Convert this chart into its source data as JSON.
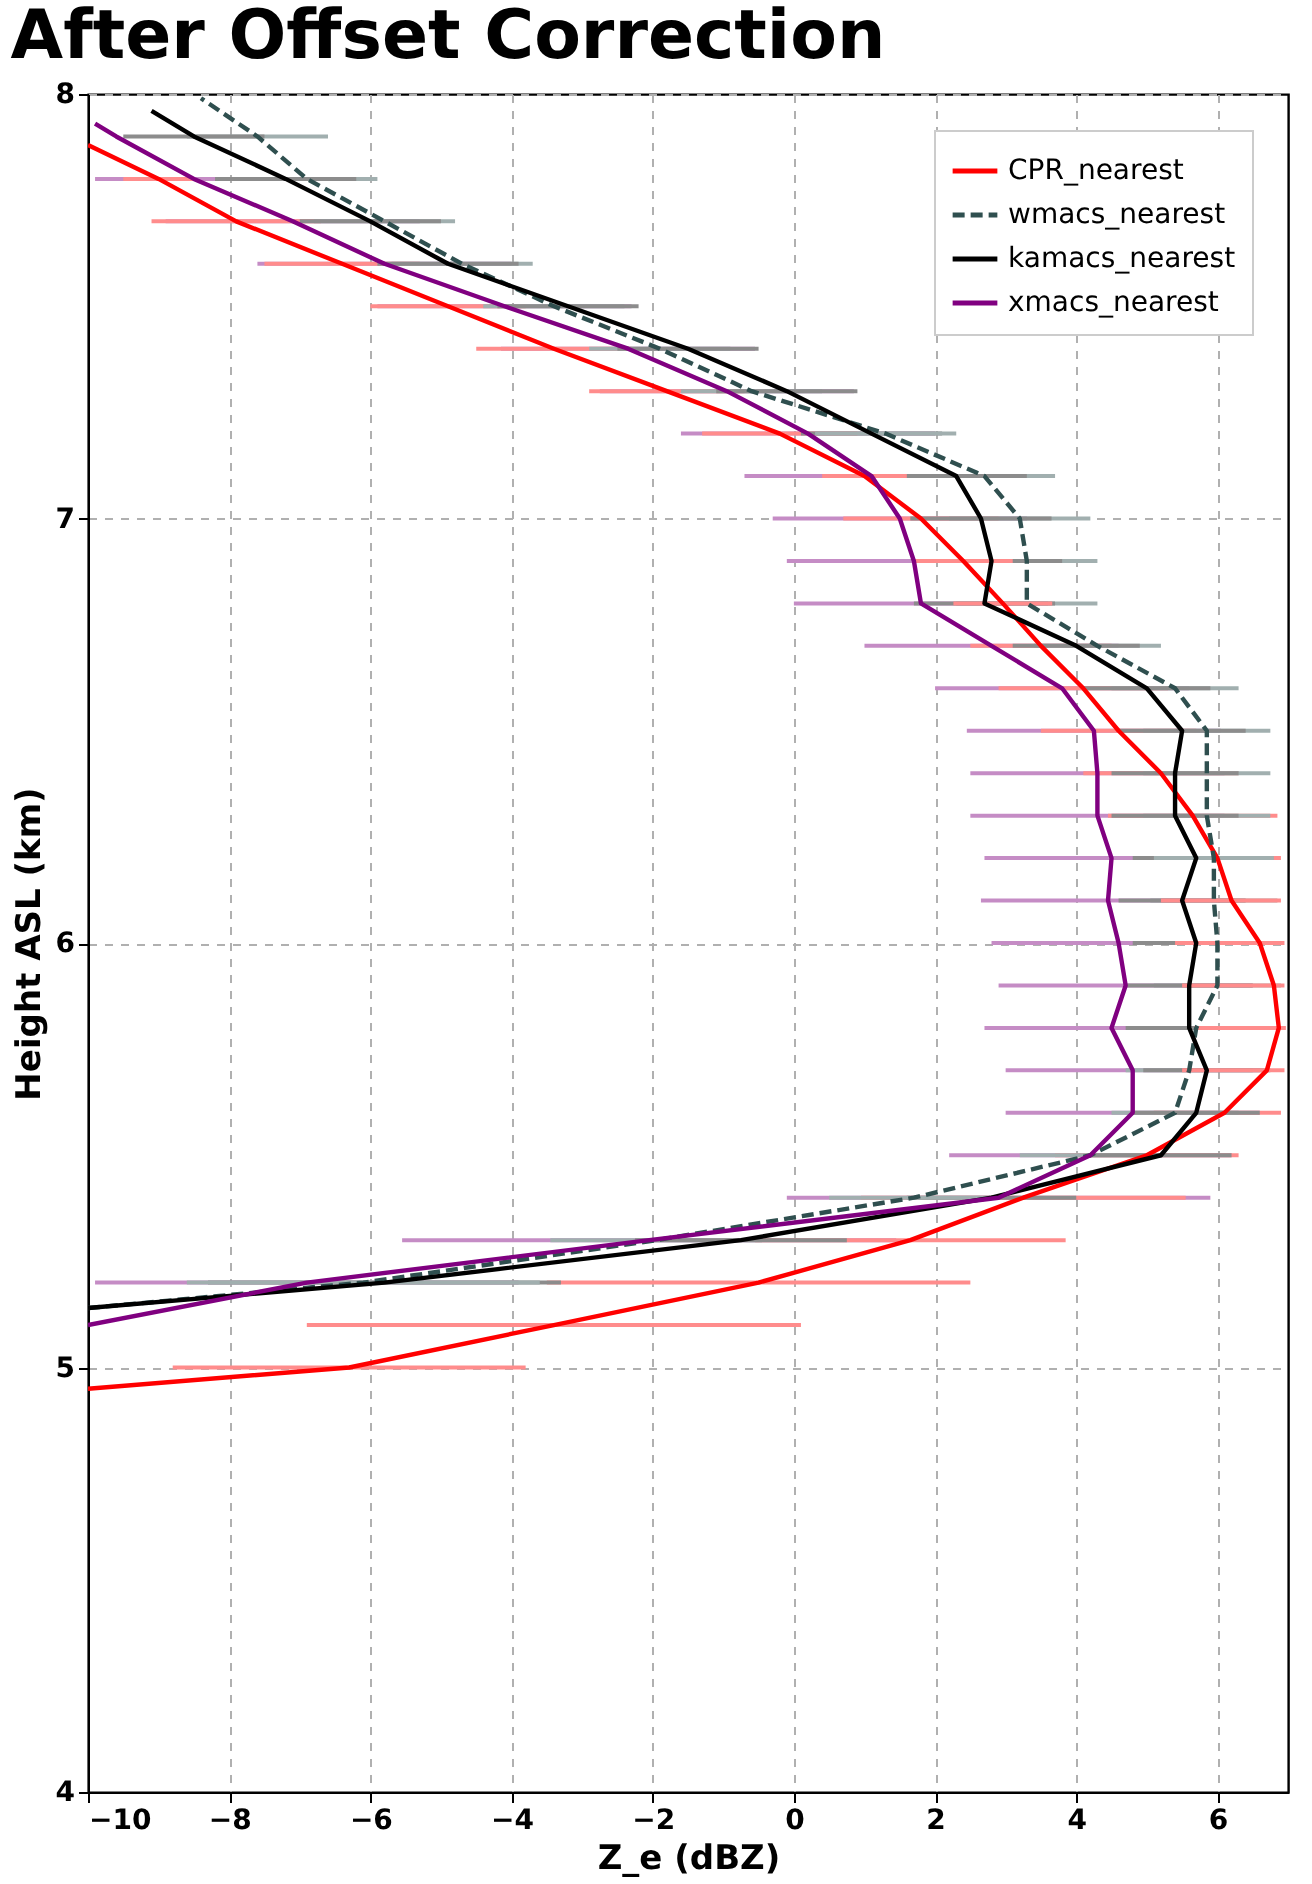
{
  "chart_data": {
    "type": "line",
    "title": "After Offset Correction",
    "xlabel": "Z_e (dBZ)",
    "ylabel": "Height ASL (km)",
    "orientation": "horizontal",
    "xlim": [
      -10,
      7
    ],
    "xticks": [
      -10,
      -8,
      -6,
      -4,
      -2,
      0,
      2,
      4,
      6
    ],
    "ylim": [
      4,
      8
    ],
    "yticks": [
      4,
      5,
      6,
      7,
      8
    ],
    "grid": true,
    "legend": "top right",
    "series": [
      {
        "name": "CPR_nearest",
        "color": "#ff0000",
        "line_style": "solid",
        "x": [
          4.95,
          5.0,
          5.1,
          5.2,
          5.3,
          5.4,
          5.5,
          5.6,
          5.7,
          5.8,
          5.9,
          6.0,
          6.1,
          6.2,
          6.3,
          6.4,
          6.5,
          6.6,
          6.7,
          6.8,
          6.9,
          7.0,
          7.1,
          7.2,
          7.3,
          7.4,
          7.5,
          7.6,
          7.7,
          7.8,
          7.88
        ],
        "values": [
          -10,
          -6.3,
          -3.4,
          -0.5,
          1.65,
          3.25,
          5.0,
          6.1,
          6.7,
          6.87,
          6.8,
          6.6,
          6.2,
          6.0,
          5.65,
          5.2,
          4.6,
          4.1,
          3.5,
          2.96,
          2.4,
          1.8,
          1.0,
          -0.2,
          -1.8,
          -3.4,
          -4.9,
          -6.4,
          -7.9,
          -9.0,
          -10
        ],
        "errors": [
          null,
          2.5,
          3.5,
          3,
          2.2,
          2.3,
          1.3,
          [
            5.1,
            6.9
          ],
          [
            5.5,
            6.95
          ],
          [
            5.67,
            6.97
          ],
          [
            5.5,
            6.95
          ],
          [
            5.4,
            6.95
          ],
          [
            5.2,
            6.9
          ],
          [
            5.0,
            6.9
          ],
          1.2,
          1.1,
          1.1,
          1.2,
          1.0,
          0.7,
          0.7,
          1.1,
          0.6,
          1.1,
          1.1,
          1.1,
          1.1,
          1.1,
          1.2,
          0.5,
          null
        ]
      },
      {
        "name": "wmacs_nearest",
        "color": "#2f4f4f",
        "line_style": "dashed",
        "x": [
          5.14,
          5.2,
          5.3,
          5.4,
          5.5,
          5.6,
          5.7,
          5.8,
          5.9,
          6.0,
          6.1,
          6.2,
          6.3,
          6.4,
          6.5,
          6.6,
          6.7,
          6.8,
          6.9,
          7.0,
          7.1,
          7.2,
          7.3,
          7.4,
          7.5,
          7.6,
          7.7,
          7.8,
          7.9,
          7.99
        ],
        "values": [
          -10,
          -6.1,
          -1.95,
          1.7,
          4.2,
          5.4,
          5.6,
          5.7,
          6.0,
          6.0,
          5.95,
          5.95,
          5.85,
          5.85,
          5.85,
          5.4,
          4.3,
          3.3,
          3.3,
          3.2,
          2.7,
          1.3,
          -0.6,
          -1.9,
          -3.4,
          -4.7,
          -5.8,
          -6.9,
          -7.6,
          -8.4
        ],
        "errors": [
          null,
          2.5,
          1.5,
          1.2,
          1.0,
          0.9,
          0.9,
          0.9,
          0.9,
          0.9,
          0.9,
          0.85,
          0.9,
          0.9,
          0.9,
          0.9,
          0.9,
          1.0,
          1.0,
          1.0,
          1.0,
          1.0,
          1.0,
          1.0,
          1.0,
          1.0,
          1.0,
          1.0,
          1.0,
          null
        ]
      },
      {
        "name": "kamacs_nearest",
        "color": "#000000",
        "line_style": "solid",
        "x": [
          5.14,
          5.2,
          5.3,
          5.4,
          5.5,
          5.6,
          5.7,
          5.8,
          5.9,
          6.0,
          6.1,
          6.2,
          6.3,
          6.4,
          6.5,
          6.6,
          6.7,
          6.8,
          6.9,
          7.0,
          7.1,
          7.2,
          7.3,
          7.4,
          7.5,
          7.6,
          7.7,
          7.8,
          7.9,
          7.96
        ],
        "values": [
          -10,
          -5.8,
          -0.75,
          2.8,
          5.2,
          5.7,
          5.85,
          5.6,
          5.6,
          5.7,
          5.5,
          5.7,
          5.4,
          5.4,
          5.5,
          5.0,
          4.0,
          2.7,
          2.8,
          2.65,
          2.3,
          1.1,
          -0.1,
          -1.5,
          -3.2,
          -4.9,
          -6.0,
          -7.2,
          -8.5,
          -9.1
        ],
        "errors": [
          null,
          2.5,
          1.5,
          1.2,
          1.0,
          0.9,
          0.9,
          0.9,
          0.9,
          0.9,
          0.9,
          0.9,
          0.9,
          0.9,
          0.9,
          0.9,
          0.9,
          1.0,
          1.0,
          1.0,
          1.0,
          1.0,
          1.0,
          1.0,
          1.0,
          1.0,
          1.0,
          1.0,
          1.0,
          null
        ]
      },
      {
        "name": "xmacs_nearest",
        "color": "#800080",
        "line_style": "solid",
        "x": [
          5.1,
          5.2,
          5.3,
          5.4,
          5.5,
          5.6,
          5.7,
          5.8,
          5.9,
          6.0,
          6.1,
          6.2,
          6.3,
          6.4,
          6.5,
          6.6,
          6.7,
          6.8,
          6.9,
          7.0,
          7.1,
          7.2,
          7.3,
          7.4,
          7.5,
          7.6,
          7.7,
          7.8,
          7.9,
          7.93
        ],
        "values": [
          -10,
          -6.9,
          -2.05,
          2.9,
          4.2,
          4.8,
          4.8,
          4.5,
          4.7,
          4.6,
          4.45,
          4.5,
          4.3,
          4.3,
          4.25,
          3.8,
          2.8,
          1.8,
          1.7,
          1.5,
          1.1,
          0.2,
          -0.95,
          -2.35,
          -4.1,
          -5.8,
          -7.1,
          -8.5,
          -9.6,
          -9.9
        ],
        "errors": [
          null,
          3.0,
          3.5,
          3.0,
          2.0,
          1.8,
          1.8,
          1.8,
          1.8,
          1.8,
          1.8,
          1.8,
          1.8,
          1.8,
          1.8,
          1.8,
          1.8,
          1.8,
          1.8,
          1.8,
          1.8,
          1.8,
          1.8,
          1.8,
          1.8,
          1.8,
          1.8,
          1.4,
          null,
          null
        ]
      }
    ]
  }
}
